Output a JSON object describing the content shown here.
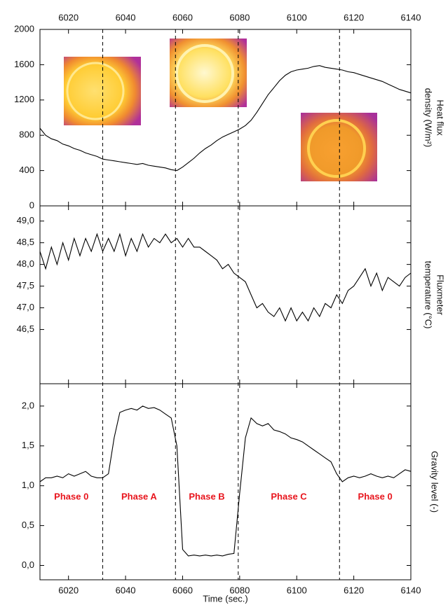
{
  "chart_data": [
    {
      "type": "line",
      "ylabel": [
        "Heat flux",
        "density (W/m²)"
      ],
      "x": [
        6010,
        6012,
        6014,
        6016,
        6018,
        6020,
        6022,
        6024,
        6026,
        6028,
        6030,
        6032,
        6034,
        6036,
        6038,
        6040,
        6042,
        6044,
        6046,
        6048,
        6050,
        6052,
        6054,
        6056,
        6058,
        6060,
        6062,
        6064,
        6066,
        6068,
        6070,
        6072,
        6074,
        6076,
        6078,
        6080,
        6082,
        6084,
        6086,
        6088,
        6090,
        6092,
        6094,
        6096,
        6098,
        6100,
        6102,
        6104,
        6106,
        6108,
        6110,
        6112,
        6114,
        6116,
        6118,
        6120,
        6122,
        6124,
        6126,
        6128,
        6130,
        6132,
        6134,
        6136,
        6138,
        6140
      ],
      "values": [
        880,
        800,
        760,
        740,
        700,
        680,
        650,
        630,
        600,
        580,
        560,
        530,
        520,
        510,
        500,
        490,
        480,
        470,
        480,
        460,
        450,
        440,
        430,
        410,
        400,
        440,
        490,
        540,
        600,
        650,
        690,
        740,
        780,
        810,
        840,
        870,
        910,
        970,
        1060,
        1160,
        1260,
        1340,
        1420,
        1480,
        1520,
        1540,
        1550,
        1560,
        1580,
        1590,
        1570,
        1560,
        1550,
        1540,
        1520,
        1510,
        1490,
        1470,
        1450,
        1430,
        1410,
        1380,
        1350,
        1320,
        1300,
        1280
      ],
      "color": "#000000",
      "xlim": [
        6010,
        6140
      ],
      "xticks": [
        6020,
        6040,
        6060,
        6080,
        6100,
        6120,
        6140
      ],
      "ylim": [
        0,
        2000
      ],
      "yticks": [
        0,
        400,
        800,
        1200,
        1600,
        2000
      ]
    },
    {
      "type": "line",
      "ylabel": [
        "Fluxmeter",
        "temperature (°C)"
      ],
      "x": [
        6010,
        6012,
        6014,
        6016,
        6018,
        6020,
        6022,
        6024,
        6026,
        6028,
        6030,
        6032,
        6034,
        6036,
        6038,
        6040,
        6042,
        6044,
        6046,
        6048,
        6050,
        6052,
        6054,
        6056,
        6058,
        6060,
        6062,
        6064,
        6066,
        6068,
        6070,
        6072,
        6074,
        6076,
        6078,
        6080,
        6082,
        6084,
        6086,
        6088,
        6090,
        6092,
        6094,
        6096,
        6098,
        6100,
        6102,
        6104,
        6106,
        6108,
        6110,
        6112,
        6114,
        6116,
        6118,
        6120,
        6122,
        6124,
        6126,
        6128,
        6130,
        6132,
        6134,
        6136,
        6138,
        6140
      ],
      "values": [
        48.3,
        47.9,
        48.4,
        48.0,
        48.5,
        48.1,
        48.6,
        48.2,
        48.6,
        48.3,
        48.7,
        48.3,
        48.6,
        48.3,
        48.7,
        48.2,
        48.6,
        48.3,
        48.7,
        48.4,
        48.6,
        48.5,
        48.7,
        48.5,
        48.6,
        48.4,
        48.6,
        48.4,
        48.4,
        48.3,
        48.2,
        48.1,
        47.9,
        48.0,
        47.8,
        47.7,
        47.6,
        47.3,
        47.0,
        47.1,
        46.9,
        46.8,
        47.0,
        46.7,
        47.0,
        46.7,
        46.9,
        46.7,
        47.0,
        46.8,
        47.1,
        47.0,
        47.3,
        47.1,
        47.4,
        47.5,
        47.7,
        47.9,
        47.5,
        47.8,
        47.4,
        47.7,
        47.6,
        47.5,
        47.7,
        47.8
      ],
      "color": "#000000",
      "xlim": [
        6010,
        6140
      ],
      "ylim": [
        45.25,
        49.35
      ],
      "yticks": [
        {
          "value": 46.5,
          "label": "46,5"
        },
        {
          "value": 47,
          "label": "47,0"
        },
        {
          "value": 47.5,
          "label": "47,5"
        },
        {
          "value": 48,
          "label": "48,0"
        },
        {
          "value": 48.5,
          "label": "48,5"
        },
        {
          "value": 49,
          "label": "49,0"
        }
      ]
    },
    {
      "type": "line",
      "ylabel": [
        "Gravity level (-)"
      ],
      "xlabel": "Time (sec.)",
      "x": [
        6010,
        6012,
        6014,
        6016,
        6018,
        6020,
        6022,
        6024,
        6026,
        6028,
        6030,
        6032,
        6034,
        6036,
        6038,
        6040,
        6042,
        6044,
        6046,
        6048,
        6050,
        6052,
        6054,
        6056,
        6058,
        6060,
        6062,
        6064,
        6066,
        6068,
        6070,
        6072,
        6074,
        6076,
        6078,
        6080,
        6082,
        6084,
        6086,
        6088,
        6090,
        6092,
        6094,
        6096,
        6098,
        6100,
        6102,
        6104,
        6106,
        6108,
        6110,
        6112,
        6114,
        6116,
        6118,
        6120,
        6122,
        6124,
        6126,
        6128,
        6130,
        6132,
        6134,
        6136,
        6138,
        6140
      ],
      "values": [
        1.05,
        1.1,
        1.1,
        1.12,
        1.1,
        1.15,
        1.12,
        1.15,
        1.18,
        1.12,
        1.1,
        1.1,
        1.15,
        1.6,
        1.92,
        1.95,
        1.97,
        1.95,
        2.0,
        1.97,
        1.98,
        1.95,
        1.9,
        1.85,
        1.5,
        0.2,
        0.12,
        0.13,
        0.12,
        0.13,
        0.12,
        0.13,
        0.12,
        0.14,
        0.15,
        0.9,
        1.6,
        1.85,
        1.78,
        1.75,
        1.78,
        1.7,
        1.68,
        1.65,
        1.6,
        1.58,
        1.55,
        1.5,
        1.45,
        1.4,
        1.35,
        1.3,
        1.15,
        1.05,
        1.1,
        1.12,
        1.1,
        1.12,
        1.15,
        1.12,
        1.1,
        1.12,
        1.1,
        1.15,
        1.2,
        1.18
      ],
      "color": "#000000",
      "xlim": [
        6010,
        6140
      ],
      "xticks": [
        6020,
        6040,
        6060,
        6080,
        6100,
        6120,
        6140
      ],
      "ylim": [
        -0.18,
        2.28
      ],
      "yticks": [
        {
          "value": 0,
          "label": "0,0"
        },
        {
          "value": 0.5,
          "label": "0,5"
        },
        {
          "value": 1,
          "label": "1,0"
        },
        {
          "value": 1.5,
          "label": "1,5"
        },
        {
          "value": 2,
          "label": "2,0"
        }
      ],
      "phase_boundaries": [
        6032,
        6057.5,
        6079.5,
        6115
      ],
      "phase_labels": [
        "Phase 0",
        "Phase A",
        "Phase B",
        "Phase C",
        "Phase 0"
      ],
      "phase_color": "#e8141c"
    }
  ]
}
